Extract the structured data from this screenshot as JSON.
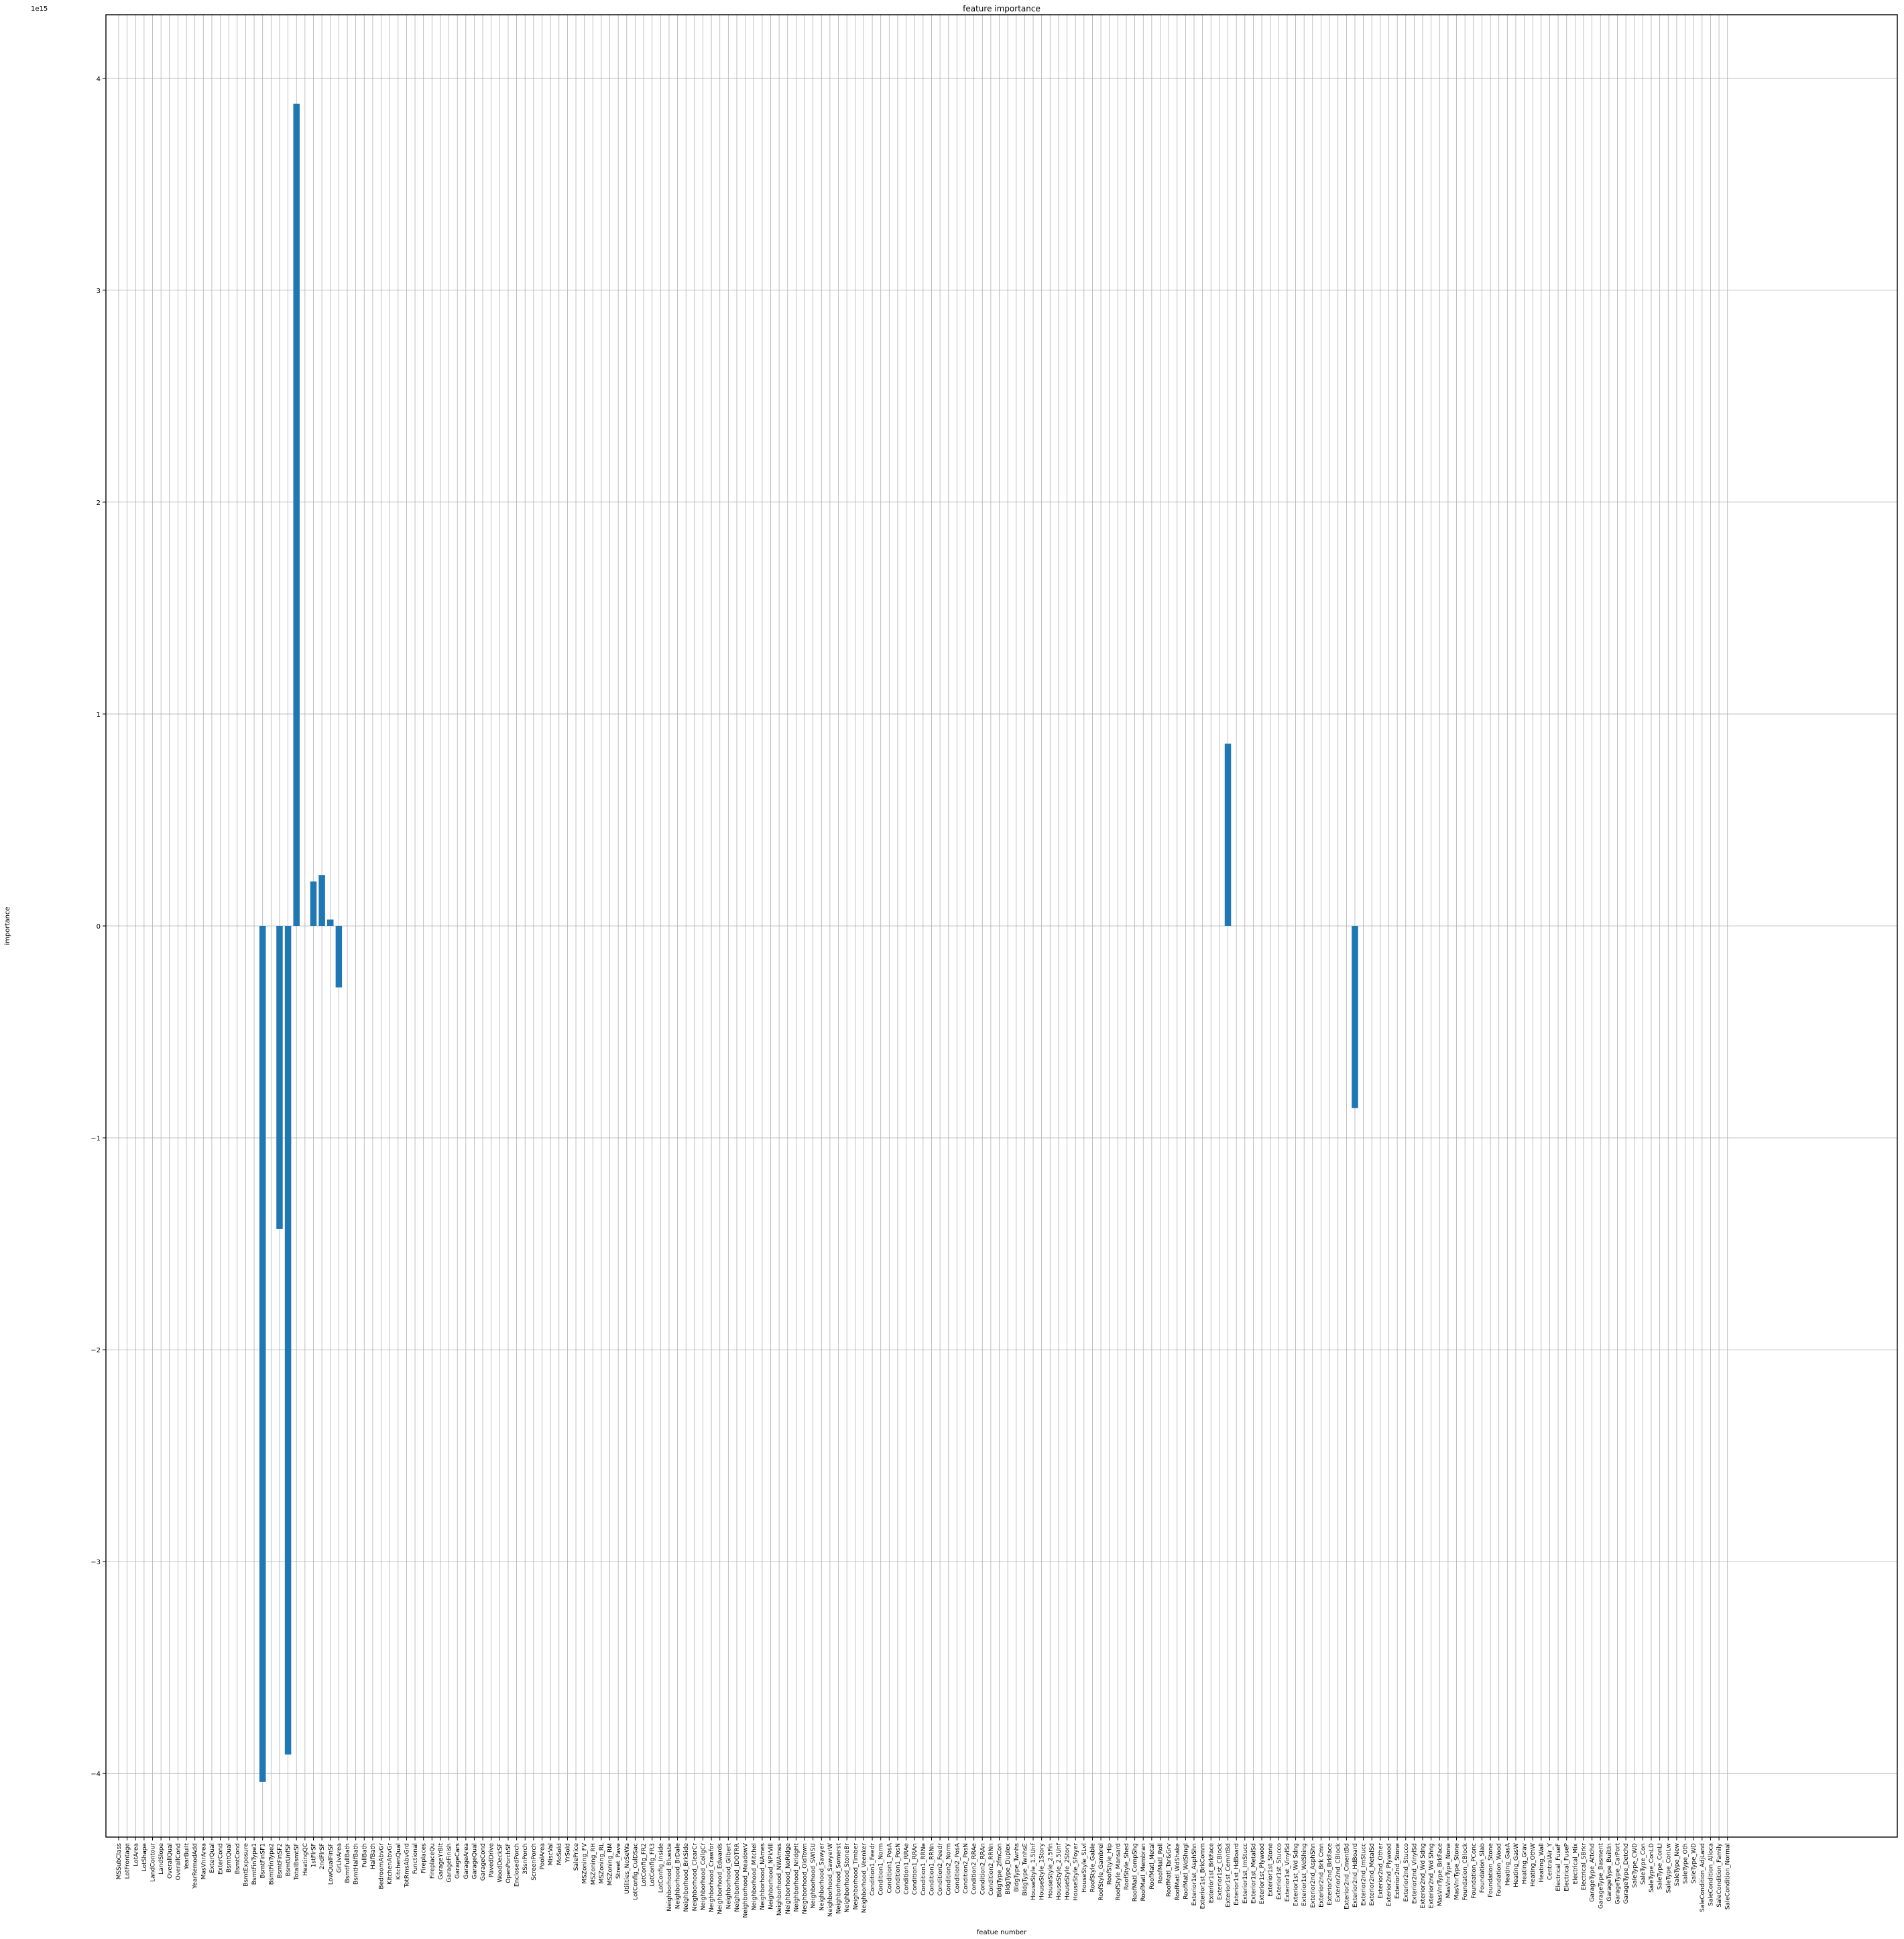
{
  "chart_data": {
    "type": "bar",
    "title": "feature importance",
    "xlabel": "featue number",
    "ylabel": "importance",
    "y_offset_label": "1e15",
    "ylim": [
      -4.3,
      4.3
    ],
    "yticks": [
      -4,
      -3,
      -2,
      -1,
      0,
      1,
      2,
      3,
      4
    ],
    "ytick_labels": [
      "−4",
      "−3",
      "−2",
      "−1",
      "0",
      "1",
      "2",
      "3",
      "4"
    ],
    "grid": true,
    "bar_color": "#1f77b4",
    "categories": [
      "MSSubClass",
      "LotFrontage",
      "LotArea",
      "LotShape",
      "LandContour",
      "LandSlope",
      "OverallQual",
      "OverallCond",
      "YearBuilt",
      "YearRemodAdd",
      "MasVnrArea",
      "ExterQual",
      "ExterCond",
      "BsmtQual",
      "BsmtCond",
      "BsmtExposure",
      "BsmtFinType1",
      "BsmtFinSF1",
      "BsmtFinType2",
      "BsmtFinSF2",
      "BsmtUnfSF",
      "TotalBsmtSF",
      "HeatingQC",
      "1stFlrSF",
      "2ndFlrSF",
      "LowQualFinSF",
      "GrLivArea",
      "BsmtFullBath",
      "BsmtHalfBath",
      "FullBath",
      "HalfBath",
      "BedroomAbvGr",
      "KitchenAbvGr",
      "KitchenQual",
      "TotRmsAbvGrd",
      "Functional",
      "Fireplaces",
      "FireplaceQu",
      "GarageYrBlt",
      "GarageFinish",
      "GarageCars",
      "GarageArea",
      "GarageQual",
      "GarageCond",
      "PavedDrive",
      "WoodDeckSF",
      "OpenPorchSF",
      "EnclosedPorch",
      "3SsnPorch",
      "ScreenPorch",
      "PoolArea",
      "MiscVal",
      "MoSold",
      "YrSold",
      "SalePrice",
      "MSZoning_FV",
      "MSZoning_RH",
      "MSZoning_RL",
      "MSZoning_RM",
      "Street_Pave",
      "Utilities_NoSeWa",
      "LotConfig_CulDSac",
      "LotConfig_FR2",
      "LotConfig_FR3",
      "LotConfig_Inside",
      "Neighborhood_Blueste",
      "Neighborhood_BrDale",
      "Neighborhood_BrkSide",
      "Neighborhood_ClearCr",
      "Neighborhood_CollgCr",
      "Neighborhood_Crawfor",
      "Neighborhood_Edwards",
      "Neighborhood_Gilbert",
      "Neighborhood_IDOTRR",
      "Neighborhood_MeadowV",
      "Neighborhood_Mitchel",
      "Neighborhood_NAmes",
      "Neighborhood_NPkVill",
      "Neighborhood_NWAmes",
      "Neighborhood_NoRidge",
      "Neighborhood_NridgHt",
      "Neighborhood_OldTown",
      "Neighborhood_SWISU",
      "Neighborhood_Sawyer",
      "Neighborhood_SawyerW",
      "Neighborhood_Somerst",
      "Neighborhood_StoneBr",
      "Neighborhood_Timber",
      "Neighborhood_Veenker",
      "Condition1_Feedr",
      "Condition1_Norm",
      "Condition1_PosA",
      "Condition1_PosN",
      "Condition1_RRAe",
      "Condition1_RRAn",
      "Condition1_RRNe",
      "Condition1_RRNn",
      "Condition2_Feedr",
      "Condition2_Norm",
      "Condition2_PosA",
      "Condition2_PosN",
      "Condition2_RRAe",
      "Condition2_RRAn",
      "Condition2_RRNn",
      "BldgType_2fmCon",
      "BldgType_Duplex",
      "BldgType_Twnhs",
      "BldgType_TwnhsE",
      "HouseStyle_1.5Unf",
      "HouseStyle_1Story",
      "HouseStyle_2.5Fin",
      "HouseStyle_2.5Unf",
      "HouseStyle_2Story",
      "HouseStyle_SFoyer",
      "HouseStyle_SLvl",
      "RoofStyle_Gable",
      "RoofStyle_Gambrel",
      "RoofStyle_Hip",
      "RoofStyle_Mansard",
      "RoofStyle_Shed",
      "RoofMatl_CompShg",
      "RoofMatl_Membran",
      "RoofMatl_Metal",
      "RoofMatl_Roll",
      "RoofMatl_Tar&Grv",
      "RoofMatl_WdShake",
      "RoofMatl_WdShngl",
      "Exterior1st_AsphShn",
      "Exterior1st_BrkComm",
      "Exterior1st_BrkFace",
      "Exterior1st_CBlock",
      "Exterior1st_CemntBd",
      "Exterior1st_HdBoard",
      "Exterior1st_ImStucc",
      "Exterior1st_MetalSd",
      "Exterior1st_Plywood",
      "Exterior1st_Stone",
      "Exterior1st_Stucco",
      "Exterior1st_VinylSd",
      "Exterior1st_Wd Sdng",
      "Exterior1st_WdShing",
      "Exterior2nd_AsphShn",
      "Exterior2nd_Brk Cmn",
      "Exterior2nd_BrkFace",
      "Exterior2nd_CBlock",
      "Exterior2nd_CmentBd",
      "Exterior2nd_HdBoard",
      "Exterior2nd_ImStucc",
      "Exterior2nd_MetalSd",
      "Exterior2nd_Other",
      "Exterior2nd_Plywood",
      "Exterior2nd_Stone",
      "Exterior2nd_Stucco",
      "Exterior2nd_VinylSd",
      "Exterior2nd_Wd Sdng",
      "Exterior2nd_Wd Shng",
      "MasVnrType_BrkFace",
      "MasVnrType_None",
      "MasVnrType_Stone",
      "Foundation_CBlock",
      "Foundation_PConc",
      "Foundation_Slab",
      "Foundation_Stone",
      "Foundation_Wood",
      "Heating_GasA",
      "Heating_GasW",
      "Heating_Grav",
      "Heating_OthW",
      "Heating_Wall",
      "CentralAir_Y",
      "Electrical_FuseF",
      "Electrical_FuseP",
      "Electrical_Mix",
      "Electrical_SBrkr",
      "GarageType_Attchd",
      "GarageType_Basment",
      "GarageType_BuiltIn",
      "GarageType_CarPort",
      "GarageType_Detchd",
      "SaleType_CWD",
      "SaleType_Con",
      "SaleType_ConLD",
      "SaleType_ConLI",
      "SaleType_ConLw",
      "SaleType_New",
      "SaleType_Oth",
      "SaleType_WD",
      "SaleCondition_AdjLand",
      "SaleCondition_Alloca",
      "SaleCondition_Family",
      "SaleCondition_Normal"
    ],
    "nonzero_values": {
      "17": -4.04,
      "19": -1.43,
      "20": -3.91,
      "21": 3.88,
      "23": 0.21,
      "24": 0.24,
      "25": 0.03,
      "26": -0.29,
      "131": 0.86,
      "146": -0.86
    }
  }
}
